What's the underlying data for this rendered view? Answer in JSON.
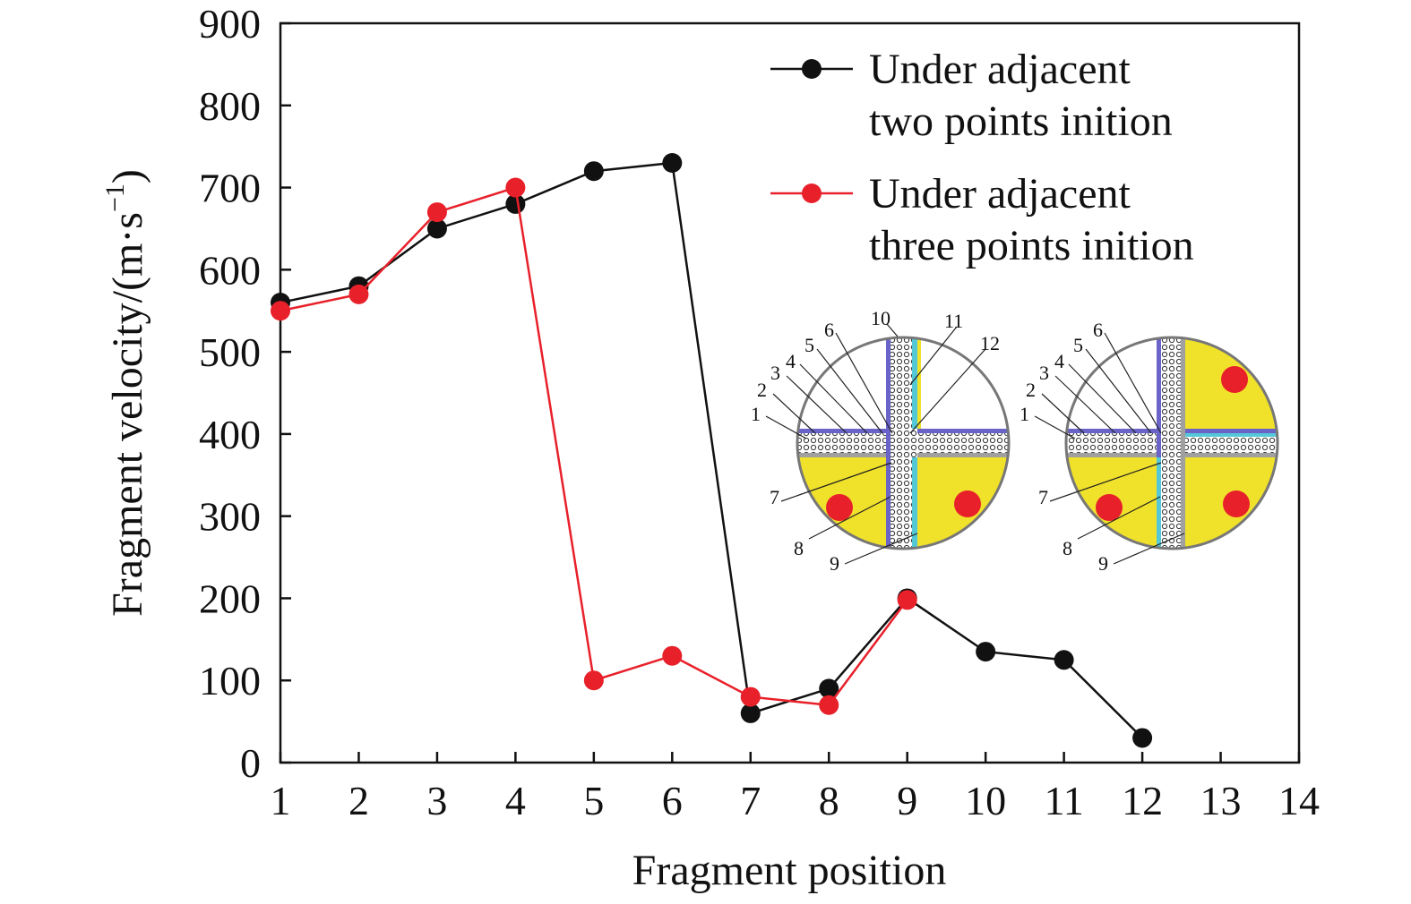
{
  "chart_data": {
    "type": "line",
    "title": "",
    "xlabel": "Fragment position",
    "ylabel": "Fragment velocity/(m·s",
    "ylabel_sup": "−1",
    "ylabel_close": ")",
    "xlim": [
      1,
      14
    ],
    "ylim": [
      0,
      900
    ],
    "xticks": [
      1,
      2,
      3,
      4,
      5,
      6,
      7,
      8,
      9,
      10,
      11,
      12,
      13,
      14
    ],
    "yticks": [
      0,
      100,
      200,
      300,
      400,
      500,
      600,
      700,
      800,
      900
    ],
    "grid": false,
    "legend_position": "top-right",
    "series": [
      {
        "name_line1": "Under adjacent",
        "name_line2": "two points inition",
        "color": "#111111",
        "x": [
          1,
          2,
          3,
          4,
          5,
          6,
          7,
          8,
          9,
          10,
          11,
          12
        ],
        "y": [
          560,
          580,
          650,
          680,
          720,
          730,
          60,
          90,
          200,
          135,
          125,
          30
        ]
      },
      {
        "name_line1": "Under adjacent",
        "name_line2": "three points inition",
        "color": "#e8202a",
        "x": [
          1,
          2,
          3,
          4,
          5,
          6,
          7,
          8,
          9
        ],
        "y": [
          550,
          570,
          670,
          700,
          100,
          130,
          80,
          70,
          198
        ]
      }
    ],
    "insets": [
      {
        "labels": [
          "1",
          "2",
          "3",
          "4",
          "5",
          "6",
          "7",
          "8",
          "9",
          "10",
          "11",
          "12"
        ],
        "initiation_points": 2
      },
      {
        "labels": [
          "1",
          "2",
          "3",
          "4",
          "5",
          "6",
          "7",
          "8",
          "9"
        ],
        "initiation_points": 3
      }
    ]
  }
}
